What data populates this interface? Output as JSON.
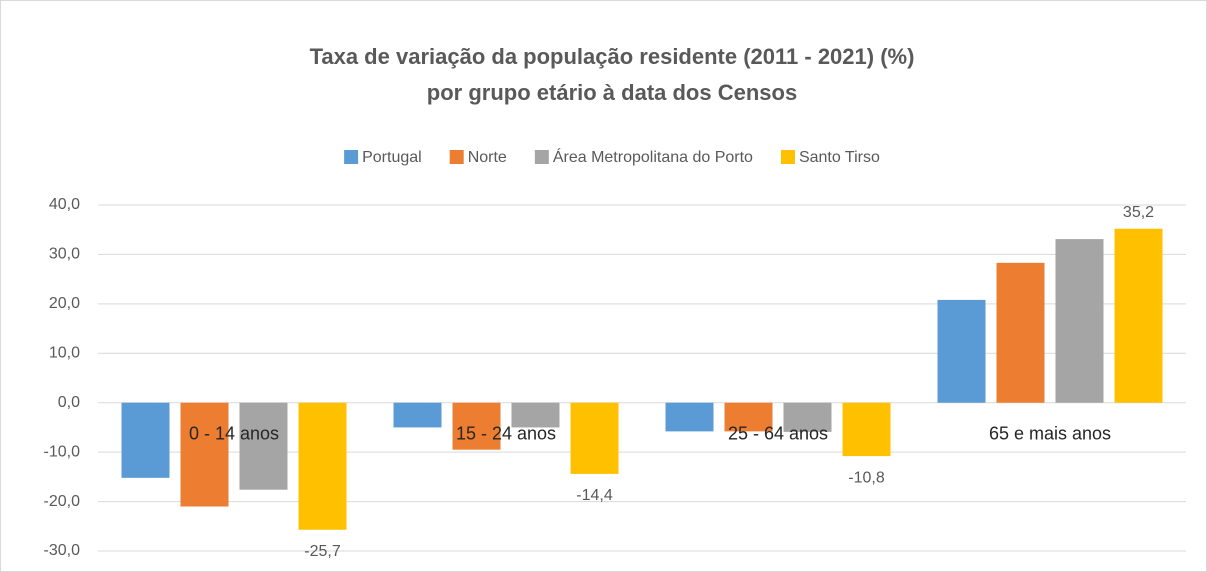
{
  "chart_data": {
    "type": "bar",
    "title": [
      "Taxa de variação da população residente (2011 - 2021) (%)",
      "por grupo etário à data dos Censos"
    ],
    "categories": [
      "0 - 14 anos",
      "15 - 24 anos",
      "25 - 64 anos",
      "65 e mais anos"
    ],
    "series": [
      {
        "name": "Portugal",
        "color": "#5b9bd5",
        "values": [
          -15.2,
          -5.0,
          -5.8,
          20.8
        ]
      },
      {
        "name": "Norte",
        "color": "#ed7d31",
        "values": [
          -21.0,
          -9.5,
          -5.8,
          28.3
        ]
      },
      {
        "name": "Área Metropolitana do Porto",
        "color": "#a5a5a5",
        "values": [
          -17.6,
          -5.0,
          -5.9,
          33.1
        ]
      },
      {
        "name": "Santo Tirso",
        "color": "#ffc000",
        "values": [
          -25.7,
          -14.4,
          -10.8,
          35.2
        ],
        "value_labels": [
          "-25,7",
          "-14,4",
          "-10,8",
          "35,2"
        ]
      }
    ],
    "ylim": [
      -30,
      40
    ],
    "yticks": [
      {
        "value": -30,
        "label": "-30,0"
      },
      {
        "value": -20,
        "label": "-20,0"
      },
      {
        "value": -10,
        "label": "-10,0"
      },
      {
        "value": 0,
        "label": "0,0"
      },
      {
        "value": 10,
        "label": "10,0"
      },
      {
        "value": 20,
        "label": "20,0"
      },
      {
        "value": 30,
        "label": "30,0"
      },
      {
        "value": 40,
        "label": "40,0"
      }
    ],
    "grid": true,
    "legend": "top"
  }
}
